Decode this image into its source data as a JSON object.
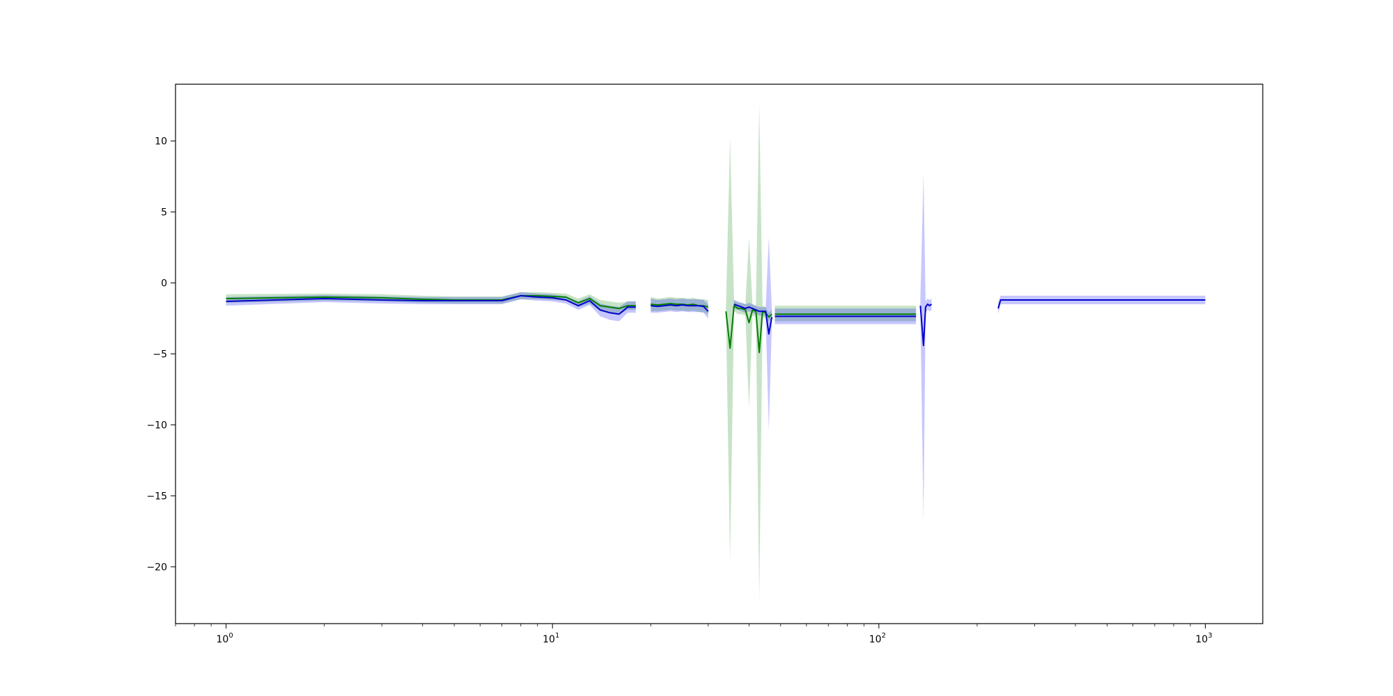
{
  "chart_data": {
    "type": "line",
    "title": "",
    "xlabel": "",
    "ylabel": "",
    "xscale": "log",
    "xlim": [
      0.7,
      1500
    ],
    "ylim": [
      -24,
      14
    ],
    "grid": false,
    "legend": "none",
    "x_ticks": [
      {
        "base": "10",
        "exp": "0",
        "value": 1
      },
      {
        "base": "10",
        "exp": "1",
        "value": 10
      },
      {
        "base": "10",
        "exp": "2",
        "value": 100
      },
      {
        "base": "10",
        "exp": "3",
        "value": 1000
      }
    ],
    "y_ticks": [
      {
        "label": "10",
        "value": 10
      },
      {
        "label": "5",
        "value": 5
      },
      {
        "label": "0",
        "value": 0
      },
      {
        "label": "−5",
        "value": -5
      },
      {
        "label": "−10",
        "value": -10
      },
      {
        "label": "−15",
        "value": -15
      },
      {
        "label": "−20",
        "value": -20
      }
    ],
    "series": [
      {
        "color": "#008000",
        "band_color": "#008000",
        "band_opacity": 0.22,
        "segments": [
          [
            [
              1,
              -1.1,
              -1.4,
              -0.8
            ],
            [
              2,
              -1.0,
              -1.25,
              -0.75
            ],
            [
              3,
              -1.05,
              -1.3,
              -0.8
            ],
            [
              4,
              -1.15,
              -1.4,
              -0.9
            ],
            [
              5,
              -1.2,
              -1.45,
              -0.95
            ],
            [
              6,
              -1.2,
              -1.45,
              -0.95
            ],
            [
              7,
              -1.2,
              -1.45,
              -0.95
            ],
            [
              8,
              -0.9,
              -1.15,
              -0.65
            ],
            [
              9,
              -0.9,
              -1.15,
              -0.65
            ],
            [
              10,
              -0.95,
              -1.2,
              -0.7
            ],
            [
              11,
              -1.0,
              -1.25,
              -0.75
            ],
            [
              12,
              -1.4,
              -1.7,
              -1.1
            ],
            [
              13,
              -1.1,
              -1.45,
              -0.8
            ],
            [
              14,
              -1.6,
              -2.0,
              -1.2
            ],
            [
              15,
              -1.7,
              -2.1,
              -1.3
            ],
            [
              16,
              -1.8,
              -2.2,
              -1.4
            ],
            [
              17,
              -1.6,
              -1.9,
              -1.3
            ],
            [
              18,
              -1.6,
              -1.9,
              -1.3
            ]
          ],
          [
            [
              20,
              -1.5,
              -2.0,
              -1.0
            ],
            [
              21,
              -1.55,
              -2.0,
              -1.1
            ],
            [
              22,
              -1.5,
              -1.95,
              -1.05
            ],
            [
              23,
              -1.45,
              -1.9,
              -1.0
            ],
            [
              24,
              -1.5,
              -1.95,
              -1.05
            ],
            [
              25,
              -1.5,
              -1.95,
              -1.05
            ],
            [
              26,
              -1.55,
              -2.0,
              -1.1
            ],
            [
              27,
              -1.5,
              -1.95,
              -1.05
            ],
            [
              28,
              -1.6,
              -2.05,
              -1.15
            ],
            [
              29,
              -1.6,
              -2.05,
              -1.15
            ],
            [
              30,
              -1.7,
              -2.2,
              -1.2
            ]
          ],
          [
            [
              34,
              -2.0,
              -2.3,
              -1.7
            ],
            [
              35,
              -4.6,
              -19.6,
              10.2
            ],
            [
              36,
              -1.6,
              -2.0,
              -1.2
            ],
            [
              37,
              -1.8,
              -2.2,
              -1.4
            ],
            [
              38,
              -1.8,
              -2.2,
              -1.4
            ],
            [
              39,
              -1.9,
              -2.3,
              -1.5
            ],
            [
              40,
              -2.8,
              -8.8,
              3.2
            ],
            [
              41,
              -1.9,
              -2.3,
              -1.5
            ],
            [
              42,
              -2.0,
              -2.4,
              -1.6
            ],
            [
              43,
              -4.9,
              -22.4,
              12.6
            ],
            [
              44,
              -2.0,
              -2.4,
              -1.6
            ],
            [
              45,
              -2.1,
              -2.5,
              -1.7
            ],
            [
              46,
              -2.4,
              -2.7,
              -2.1
            ],
            [
              47,
              -2.2,
              -2.5,
              -1.9
            ]
          ],
          [
            [
              48,
              -2.2,
              -2.7,
              -1.6
            ],
            [
              130,
              -2.2,
              -2.7,
              -1.6
            ]
          ]
        ]
      },
      {
        "color": "#0000cc",
        "band_color": "#0000ff",
        "band_opacity": 0.22,
        "segments": [
          [
            [
              1,
              -1.3,
              -1.6,
              -1.0
            ],
            [
              2,
              -1.1,
              -1.35,
              -0.85
            ],
            [
              3,
              -1.2,
              -1.45,
              -0.95
            ],
            [
              4,
              -1.25,
              -1.5,
              -1.0
            ],
            [
              5,
              -1.25,
              -1.5,
              -1.0
            ],
            [
              6,
              -1.25,
              -1.5,
              -1.0
            ],
            [
              7,
              -1.25,
              -1.5,
              -1.0
            ],
            [
              8,
              -0.9,
              -1.15,
              -0.65
            ],
            [
              9,
              -1.0,
              -1.25,
              -0.75
            ],
            [
              10,
              -1.05,
              -1.3,
              -0.8
            ],
            [
              11,
              -1.2,
              -1.45,
              -0.95
            ],
            [
              12,
              -1.6,
              -1.9,
              -1.3
            ],
            [
              13,
              -1.25,
              -1.55,
              -0.95
            ],
            [
              14,
              -1.9,
              -2.35,
              -1.45
            ],
            [
              15,
              -2.1,
              -2.6,
              -1.6
            ],
            [
              16,
              -2.2,
              -2.7,
              -1.7
            ],
            [
              17,
              -1.7,
              -2.1,
              -1.3
            ],
            [
              18,
              -1.7,
              -2.1,
              -1.3
            ]
          ],
          [
            [
              20,
              -1.6,
              -2.1,
              -1.1
            ],
            [
              21,
              -1.65,
              -2.1,
              -1.2
            ],
            [
              22,
              -1.6,
              -2.05,
              -1.15
            ],
            [
              23,
              -1.55,
              -2.0,
              -1.1
            ],
            [
              24,
              -1.6,
              -2.05,
              -1.15
            ],
            [
              25,
              -1.55,
              -2.0,
              -1.1
            ],
            [
              26,
              -1.6,
              -2.05,
              -1.15
            ],
            [
              27,
              -1.6,
              -2.05,
              -1.15
            ],
            [
              28,
              -1.6,
              -2.05,
              -1.15
            ],
            [
              29,
              -1.65,
              -2.1,
              -1.2
            ],
            [
              30,
              -2.0,
              -2.5,
              -1.5
            ]
          ],
          [
            [
              36,
              -1.5,
              -1.8,
              -1.2
            ],
            [
              37,
              -1.6,
              -1.9,
              -1.3
            ],
            [
              38,
              -1.7,
              -2.0,
              -1.4
            ],
            [
              39,
              -1.8,
              -2.1,
              -1.5
            ],
            [
              40,
              -1.7,
              -2.0,
              -1.4
            ],
            [
              41,
              -1.8,
              -2.1,
              -1.5
            ],
            [
              42,
              -1.9,
              -2.2,
              -1.6
            ],
            [
              43,
              -2.0,
              -2.3,
              -1.7
            ],
            [
              44,
              -2.0,
              -2.3,
              -1.7
            ],
            [
              45,
              -2.0,
              -2.3,
              -1.7
            ],
            [
              46,
              -3.6,
              -10.4,
              3.2
            ],
            [
              47,
              -2.4,
              -2.9,
              -1.9
            ]
          ],
          [
            [
              48,
              -2.35,
              -2.9,
              -1.8
            ],
            [
              130,
              -2.35,
              -2.9,
              -1.8
            ]
          ],
          [
            [
              134,
              -1.6,
              -2.0,
              -1.2
            ],
            [
              137,
              -4.4,
              -16.8,
              7.7
            ],
            [
              139,
              -1.7,
              -2.1,
              -1.3
            ],
            [
              141,
              -1.5,
              -1.9,
              -1.1
            ],
            [
              143,
              -1.6,
              -2.0,
              -1.2
            ],
            [
              145,
              -1.5,
              -1.9,
              -1.1
            ]
          ],
          [
            [
              232,
              -1.8,
              -2.2,
              -1.4
            ],
            [
              236,
              -1.2,
              -1.5,
              -0.9
            ],
            [
              1000,
              -1.2,
              -1.5,
              -0.9
            ]
          ]
        ]
      }
    ]
  }
}
